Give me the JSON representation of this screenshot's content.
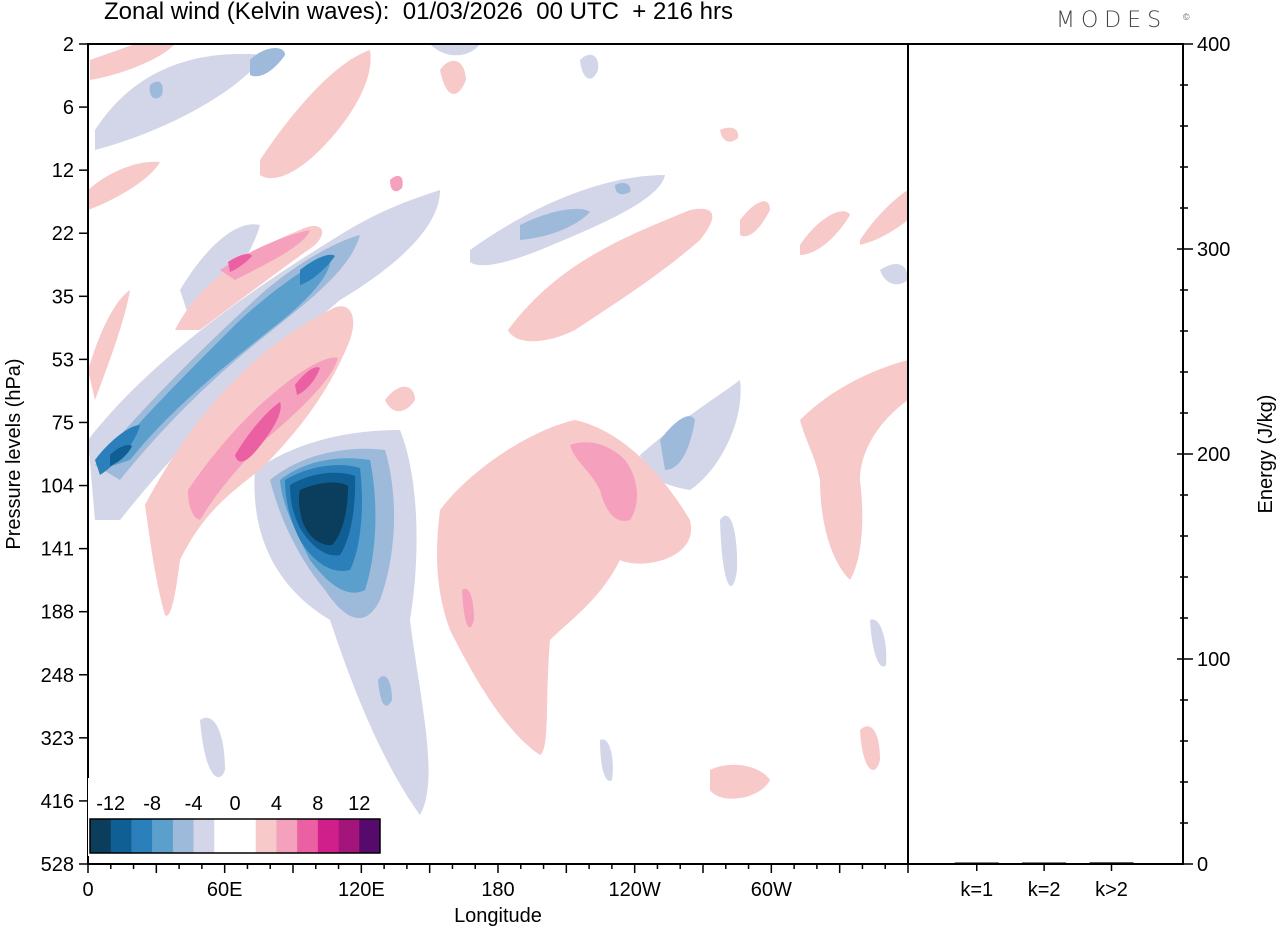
{
  "title": "Zonal wind (Kelvin waves):  01/03/2026  00 UTC  + 216 hrs",
  "brand": "MODES",
  "brand_mark": "©",
  "chart_data": [
    {
      "type": "heatmap",
      "title": "Zonal wind (Kelvin waves)",
      "xlabel": "Longitude",
      "ylabel": "Pressure levels (hPa)",
      "x_ticks": [
        "0",
        "60E",
        "120E",
        "180",
        "120W",
        "60W"
      ],
      "x_tick_degrees": [
        0,
        60,
        120,
        180,
        240,
        300
      ],
      "xlim": [
        0,
        360
      ],
      "y_ticks": [
        "2",
        "6",
        "12",
        "22",
        "35",
        "53",
        "75",
        "104",
        "141",
        "188",
        "248",
        "323",
        "416",
        "528"
      ],
      "colorbar": {
        "labels": [
          "-12",
          "-8",
          "-4",
          "0",
          "4",
          "8",
          "12"
        ],
        "colors": [
          "#0b3d5c",
          "#0f5f94",
          "#2b7fba",
          "#5b9fcc",
          "#9dbadb",
          "#d3d6e8",
          "#ffffff",
          "#ffffff",
          "#f8c9c9",
          "#f5a0bd",
          "#eb5fa3",
          "#d01f8a",
          "#a3157a",
          "#560a6c"
        ]
      },
      "features": [
        {
          "kind": "negative",
          "value": -14,
          "lon": 100,
          "level": "141",
          "desc": "strong easterly core"
        },
        {
          "kind": "negative",
          "value": -6,
          "lon": 40,
          "level": "75",
          "desc": "descending easterly band"
        },
        {
          "kind": "negative",
          "value": -6,
          "lon": 90,
          "level": "35",
          "desc": "descending easterly band"
        },
        {
          "kind": "positive",
          "value": 8,
          "lon": 70,
          "level": "104",
          "desc": "descending westerly band"
        },
        {
          "kind": "positive",
          "value": 8,
          "lon": 95,
          "level": "53",
          "desc": "descending westerly band"
        },
        {
          "kind": "positive",
          "value": 4,
          "lon": 195,
          "level": "141",
          "desc": "broad westerly region"
        },
        {
          "kind": "positive",
          "value": 6,
          "lon": 225,
          "level": "104",
          "desc": "westerly maximum"
        }
      ]
    },
    {
      "type": "bar",
      "ylabel": "Energy (J/kg)",
      "ylim": [
        0,
        400
      ],
      "y_ticks": [
        "0",
        "100",
        "200",
        "300",
        "400"
      ],
      "categories": [
        "k=1",
        "k=2",
        "k>2"
      ],
      "values": [
        0.3,
        0.3,
        0.8
      ]
    }
  ]
}
